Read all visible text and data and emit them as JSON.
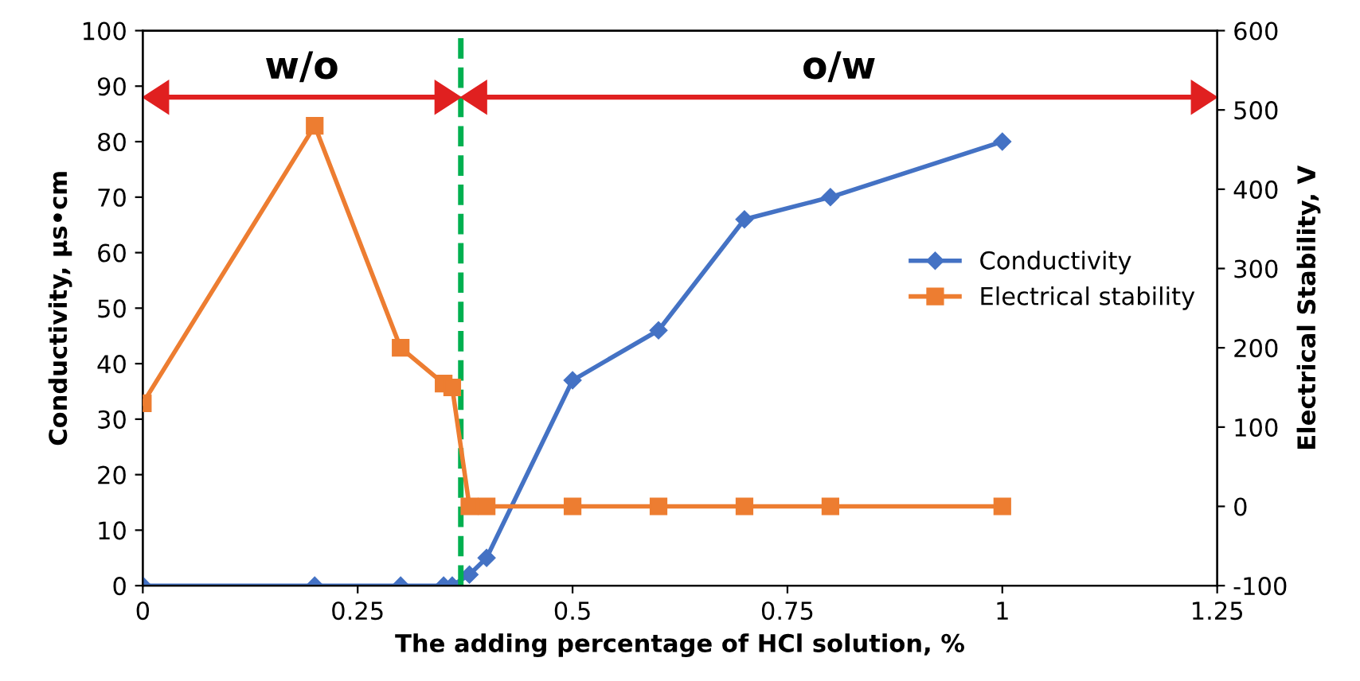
{
  "chart_data": {
    "type": "line",
    "xlabel": "The adding percentage of HCl solution, %",
    "ylabel": "Conductivity, µs•cm",
    "y2label": "Electrical Stability, V",
    "xlim": [
      0,
      1.25
    ],
    "xticks": [
      0,
      0.25,
      0.5,
      0.75,
      1,
      1.25
    ],
    "ylim": [
      0,
      100
    ],
    "yticks": [
      0,
      10,
      20,
      30,
      40,
      50,
      60,
      70,
      80,
      90,
      100
    ],
    "y2lim": [
      -100,
      600
    ],
    "y2ticks": [
      -100,
      0,
      100,
      200,
      300,
      400,
      500,
      600
    ],
    "series": [
      {
        "name": "Conductivity",
        "color": "#4472c4",
        "marker": "diamond",
        "x": [
          0,
          0.2,
          0.3,
          0.35,
          0.36,
          0.38,
          0.4,
          0.5,
          0.6,
          0.7,
          0.8,
          1.0
        ],
        "values": [
          0,
          0,
          0,
          0,
          0,
          2,
          5,
          37,
          46,
          66,
          70,
          80
        ]
      },
      {
        "name": "Electrical stability",
        "color": "#ed7d31",
        "marker": "square",
        "axis": "y2",
        "x": [
          0,
          0.2,
          0.3,
          0.35,
          0.36,
          0.38,
          0.4,
          0.5,
          0.6,
          0.7,
          0.8,
          1.0
        ],
        "values": [
          130,
          480,
          200,
          155,
          150,
          0,
          0,
          0,
          0,
          0,
          0,
          0
        ]
      }
    ],
    "ref_lines": [
      {
        "axis": "x",
        "value": 0.37,
        "color": "#00b050",
        "line_style": "dashed"
      }
    ],
    "annotations": [
      "w/o",
      "o/w"
    ],
    "legend": "right",
    "grid": false,
    "line_style": "solid"
  }
}
